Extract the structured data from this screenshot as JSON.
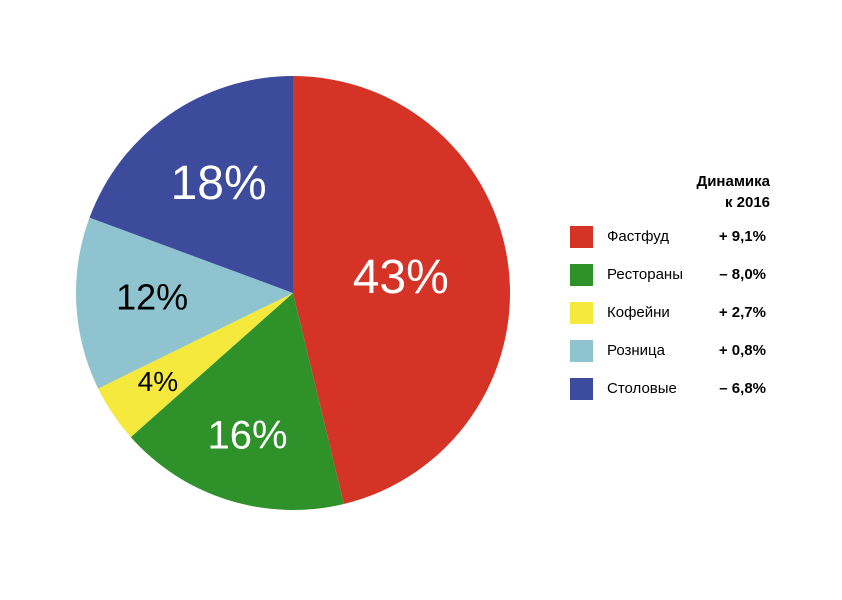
{
  "chart_data": {
    "type": "pie",
    "categories": [
      "Фастфуд",
      "Рестораны",
      "Кофейни",
      "Розница",
      "Столовые"
    ],
    "values": [
      43,
      16,
      4,
      12,
      18
    ],
    "value_labels": [
      "43%",
      "16%",
      "4%",
      "12%",
      "18%"
    ],
    "colors": [
      "#d63327",
      "#2e9129",
      "#f4e93c",
      "#8ec3cf",
      "#3c4b9b"
    ],
    "label_colors": [
      "#ffffff",
      "#ffffff",
      "#000000",
      "#000000",
      "#ffffff"
    ],
    "changes_title": [
      "Динамика",
      "к 2016"
    ],
    "changes": [
      "+ 9,1%",
      "– 8,0%",
      "+ 2,7%",
      "+ 0,8%",
      "– 6,8%"
    ]
  }
}
